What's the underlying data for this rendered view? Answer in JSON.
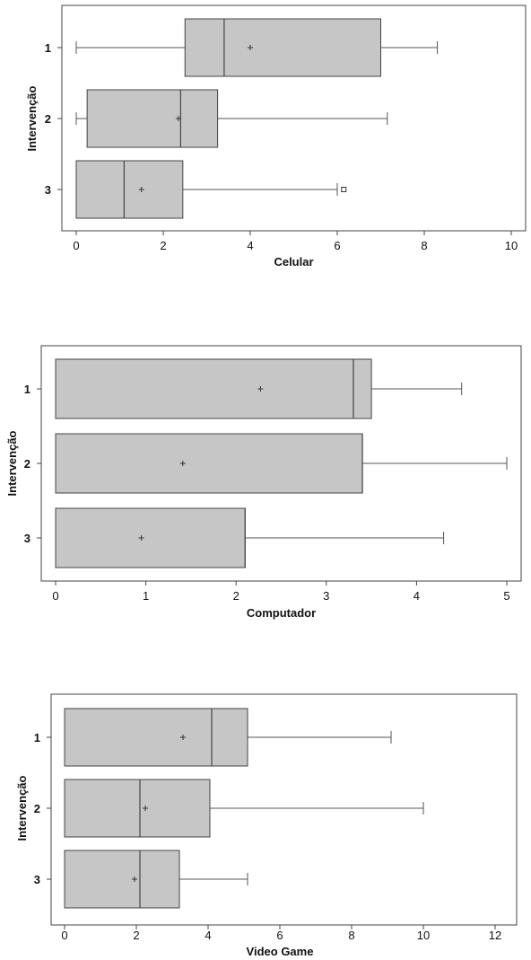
{
  "chart_data": [
    {
      "type": "boxplot",
      "orientation": "horizontal",
      "xlabel": "Celular",
      "ylabel": "Intervenção",
      "xlim": [
        0,
        10
      ],
      "xticks": [
        "0",
        "2",
        "4",
        "6",
        "8",
        "10"
      ],
      "categories": [
        "1",
        "2",
        "3"
      ],
      "boxes": [
        {
          "category": "1",
          "whisker_low": 0.0,
          "q1": 2.5,
          "median": 3.4,
          "q3": 7.0,
          "whisker_high": 8.3,
          "mean": 4.0,
          "outliers": []
        },
        {
          "category": "2",
          "whisker_low": 0.0,
          "q1": 0.25,
          "median": 2.4,
          "q3": 3.25,
          "whisker_high": 7.15,
          "mean": 2.35,
          "outliers": []
        },
        {
          "category": "3",
          "whisker_low": 0.0,
          "q1": 0.0,
          "median": 1.1,
          "q3": 2.45,
          "whisker_high": 6.0,
          "mean": 1.5,
          "outliers": [
            6.15
          ]
        }
      ]
    },
    {
      "type": "boxplot",
      "orientation": "horizontal",
      "xlabel": "Computador",
      "ylabel": "Intervenção",
      "xlim": [
        0,
        5
      ],
      "xticks": [
        "0",
        "1",
        "2",
        "3",
        "4",
        "5"
      ],
      "categories": [
        "1",
        "2",
        "3"
      ],
      "boxes": [
        {
          "category": "1",
          "whisker_low": 0.0,
          "q1": 0.0,
          "median": 3.3,
          "q3": 3.5,
          "whisker_high": 4.5,
          "mean": 2.27,
          "outliers": []
        },
        {
          "category": "2",
          "whisker_low": 0.0,
          "q1": 0.0,
          "median": 3.4,
          "q3": 3.4,
          "whisker_high": 5.0,
          "mean": 1.41,
          "outliers": []
        },
        {
          "category": "3",
          "whisker_low": 0.0,
          "q1": 0.0,
          "median": 2.1,
          "q3": 2.1,
          "whisker_high": 4.3,
          "mean": 0.95,
          "outliers": []
        }
      ]
    },
    {
      "type": "boxplot",
      "orientation": "horizontal",
      "xlabel": "Video Game",
      "ylabel": "Intervenção",
      "xlim": [
        0,
        12
      ],
      "xticks": [
        "0",
        "2",
        "4",
        "6",
        "8",
        "10",
        "12"
      ],
      "categories": [
        "1",
        "2",
        "3"
      ],
      "boxes": [
        {
          "category": "1",
          "whisker_low": 0.0,
          "q1": 0.0,
          "median": 4.1,
          "q3": 5.1,
          "whisker_high": 9.1,
          "mean": 3.3,
          "outliers": []
        },
        {
          "category": "2",
          "whisker_low": 0.0,
          "q1": 0.0,
          "median": 2.1,
          "q3": 4.05,
          "whisker_high": 10.0,
          "mean": 2.25,
          "outliers": []
        },
        {
          "category": "3",
          "whisker_low": 0.0,
          "q1": 0.0,
          "median": 2.1,
          "q3": 3.2,
          "whisker_high": 5.1,
          "mean": 1.95,
          "outliers": []
        }
      ]
    }
  ]
}
